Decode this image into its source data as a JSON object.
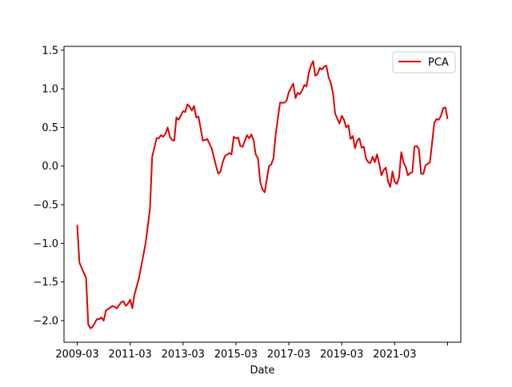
{
  "chart_data": {
    "type": "line",
    "title": "",
    "xlabel": "Date",
    "ylabel": "",
    "x_tick_labels": [
      "2009-03",
      "2011-03",
      "2013-03",
      "2015-03",
      "2017-03",
      "2019-03",
      "2021-03",
      ""
    ],
    "y_tick_labels": [
      "−2.0",
      "−1.5",
      "−1.0",
      "−0.5",
      "0.0",
      "0.5",
      "1.0",
      "1.5"
    ],
    "y_ticks": [
      -2.0,
      -1.5,
      -1.0,
      -0.5,
      0.0,
      0.5,
      1.0,
      1.5
    ],
    "x_ticks": [
      "2009-03",
      "2011-03",
      "2013-03",
      "2015-03",
      "2017-03",
      "2019-03",
      "2021-03",
      "2023-03"
    ],
    "xlim": [
      "2008-09",
      "2023-09"
    ],
    "ylim": [
      -2.28,
      1.55
    ],
    "grid": false,
    "legend_position": "top-right",
    "series": [
      {
        "name": "PCA",
        "color": "#e00000",
        "points": [
          [
            "2009-03",
            -0.76
          ],
          [
            "2009-04",
            -1.25
          ],
          [
            "2009-07",
            -1.45
          ],
          [
            "2009-08",
            -2.05
          ],
          [
            "2009-09",
            -2.1
          ],
          [
            "2009-10",
            -2.08
          ],
          [
            "2009-12",
            -1.98
          ],
          [
            "2010-01",
            -1.98
          ],
          [
            "2010-02",
            -1.96
          ],
          [
            "2010-03",
            -2.0
          ],
          [
            "2010-04",
            -1.87
          ],
          [
            "2010-06",
            -1.83
          ],
          [
            "2010-07",
            -1.81
          ],
          [
            "2010-09",
            -1.84
          ],
          [
            "2010-11",
            -1.76
          ],
          [
            "2010-12",
            -1.75
          ],
          [
            "2011-01",
            -1.81
          ],
          [
            "2011-02",
            -1.78
          ],
          [
            "2011-03",
            -1.73
          ],
          [
            "2011-04",
            -1.84
          ],
          [
            "2011-05",
            -1.66
          ],
          [
            "2011-07",
            -1.45
          ],
          [
            "2011-10",
            -1.0
          ],
          [
            "2011-12",
            -0.55
          ],
          [
            "2012-01",
            0.12
          ],
          [
            "2012-03",
            0.36
          ],
          [
            "2012-04",
            0.36
          ],
          [
            "2012-05",
            0.4
          ],
          [
            "2012-06",
            0.38
          ],
          [
            "2012-07",
            0.42
          ],
          [
            "2012-08",
            0.5
          ],
          [
            "2012-09",
            0.38
          ],
          [
            "2012-10",
            0.34
          ],
          [
            "2012-11",
            0.33
          ],
          [
            "2012-12",
            0.63
          ],
          [
            "2013-01",
            0.6
          ],
          [
            "2013-03",
            0.71
          ],
          [
            "2013-04",
            0.7
          ],
          [
            "2013-05",
            0.8
          ],
          [
            "2013-06",
            0.77
          ],
          [
            "2013-07",
            0.72
          ],
          [
            "2013-08",
            0.78
          ],
          [
            "2013-09",
            0.63
          ],
          [
            "2013-10",
            0.64
          ],
          [
            "2013-12",
            0.33
          ],
          [
            "2014-02",
            0.35
          ],
          [
            "2014-04",
            0.23
          ],
          [
            "2014-06",
            0.0
          ],
          [
            "2014-07",
            -0.1
          ],
          [
            "2014-08",
            -0.07
          ],
          [
            "2014-09",
            0.05
          ],
          [
            "2014-10",
            0.13
          ],
          [
            "2014-12",
            0.17
          ],
          [
            "2015-01",
            0.15
          ],
          [
            "2015-02",
            0.38
          ],
          [
            "2015-03",
            0.36
          ],
          [
            "2015-04",
            0.37
          ],
          [
            "2015-05",
            0.26
          ],
          [
            "2015-06",
            0.25
          ],
          [
            "2015-08",
            0.4
          ],
          [
            "2015-09",
            0.36
          ],
          [
            "2015-10",
            0.41
          ],
          [
            "2015-11",
            0.33
          ],
          [
            "2015-12",
            0.15
          ],
          [
            "2016-01",
            0.1
          ],
          [
            "2016-02",
            -0.2
          ],
          [
            "2016-03",
            -0.3
          ],
          [
            "2016-04",
            -0.34
          ],
          [
            "2016-06",
            0.0
          ],
          [
            "2016-07",
            0.02
          ],
          [
            "2016-08",
            0.1
          ],
          [
            "2016-09",
            0.4
          ],
          [
            "2016-11",
            0.82
          ],
          [
            "2017-01",
            0.82
          ],
          [
            "2017-02",
            0.85
          ],
          [
            "2017-03",
            0.96
          ],
          [
            "2017-05",
            1.07
          ],
          [
            "2017-06",
            0.88
          ],
          [
            "2017-07",
            0.95
          ],
          [
            "2017-08",
            0.93
          ],
          [
            "2017-09",
            0.98
          ],
          [
            "2017-10",
            1.05
          ],
          [
            "2017-11",
            1.03
          ],
          [
            "2017-12",
            1.2
          ],
          [
            "2018-01",
            1.3
          ],
          [
            "2018-02",
            1.36
          ],
          [
            "2018-03",
            1.17
          ],
          [
            "2018-04",
            1.19
          ],
          [
            "2018-05",
            1.27
          ],
          [
            "2018-06",
            1.25
          ],
          [
            "2018-07",
            1.29
          ],
          [
            "2018-08",
            1.3
          ],
          [
            "2018-09",
            1.15
          ],
          [
            "2018-10",
            1.08
          ],
          [
            "2018-11",
            0.95
          ],
          [
            "2018-12",
            0.68
          ],
          [
            "2019-02",
            0.55
          ],
          [
            "2019-03",
            0.65
          ],
          [
            "2019-04",
            0.6
          ],
          [
            "2019-05",
            0.5
          ],
          [
            "2019-06",
            0.53
          ],
          [
            "2019-07",
            0.35
          ],
          [
            "2019-08",
            0.39
          ],
          [
            "2019-09",
            0.23
          ],
          [
            "2019-10",
            0.33
          ],
          [
            "2019-11",
            0.36
          ],
          [
            "2019-12",
            0.24
          ],
          [
            "2020-01",
            0.25
          ],
          [
            "2020-02",
            0.1
          ],
          [
            "2020-03",
            0.05
          ],
          [
            "2020-04",
            0.04
          ],
          [
            "2020-05",
            0.12
          ],
          [
            "2020-06",
            0.05
          ],
          [
            "2020-07",
            0.15
          ],
          [
            "2020-08",
            0.03
          ],
          [
            "2020-09",
            -0.12
          ],
          [
            "2020-10",
            -0.05
          ],
          [
            "2020-11",
            -0.02
          ],
          [
            "2020-12",
            -0.2
          ],
          [
            "2021-01",
            -0.27
          ],
          [
            "2021-02",
            -0.07
          ],
          [
            "2021-03",
            -0.2
          ],
          [
            "2021-04",
            -0.23
          ],
          [
            "2021-05",
            -0.15
          ],
          [
            "2021-06",
            0.18
          ],
          [
            "2021-07",
            0.05
          ],
          [
            "2021-08",
            -0.01
          ],
          [
            "2021-09",
            -0.12
          ],
          [
            "2021-10",
            -0.09
          ],
          [
            "2021-11",
            -0.08
          ],
          [
            "2021-12",
            0.25
          ],
          [
            "2022-01",
            0.26
          ],
          [
            "2022-02",
            0.22
          ],
          [
            "2022-03",
            -0.1
          ],
          [
            "2022-04",
            -0.1
          ],
          [
            "2022-05",
            0.01
          ],
          [
            "2022-07",
            0.05
          ],
          [
            "2022-09",
            0.56
          ],
          [
            "2022-10",
            0.61
          ],
          [
            "2022-11",
            0.6
          ],
          [
            "2022-12",
            0.65
          ],
          [
            "2023-01",
            0.75
          ],
          [
            "2023-02",
            0.76
          ],
          [
            "2023-03",
            0.61
          ]
        ]
      }
    ]
  }
}
